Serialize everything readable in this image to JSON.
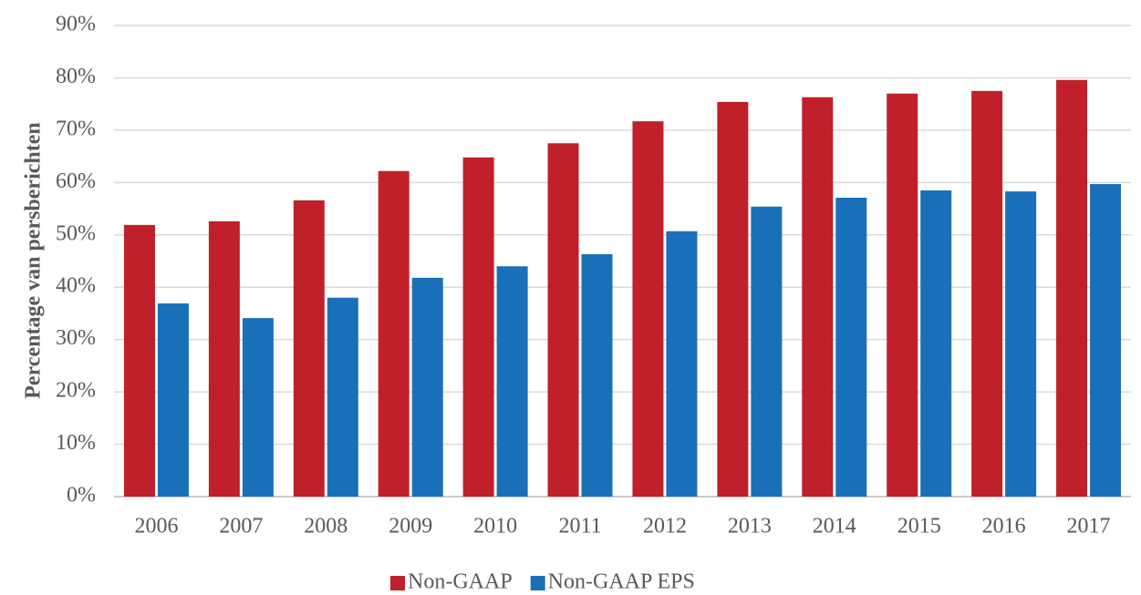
{
  "chart_data": {
    "type": "bar",
    "y_label": "Percentage van persberichten",
    "categories": [
      "2006",
      "2007",
      "2008",
      "2009",
      "2010",
      "2011",
      "2012",
      "2013",
      "2014",
      "2015",
      "2016",
      "2017"
    ],
    "series": [
      {
        "name": "Non-GAAP",
        "color": "#c0202a",
        "values": [
          51.9,
          52.6,
          56.6,
          62.2,
          64.8,
          67.5,
          71.7,
          75.4,
          76.3,
          77.0,
          77.5,
          79.6
        ]
      },
      {
        "name": "Non-GAAP EPS",
        "color": "#1a70b8",
        "values": [
          36.9,
          34.1,
          38.0,
          41.8,
          44.0,
          46.3,
          50.7,
          55.4,
          57.1,
          58.5,
          58.3,
          59.7
        ]
      }
    ],
    "ylim": [
      0,
      90
    ],
    "yticks": [
      {
        "value": 0,
        "label": "0%"
      },
      {
        "value": 10,
        "label": "10%"
      },
      {
        "value": 20,
        "label": "20%"
      },
      {
        "value": 30,
        "label": "30%"
      },
      {
        "value": 40,
        "label": "40%"
      },
      {
        "value": 50,
        "label": "50%"
      },
      {
        "value": 60,
        "label": "60%"
      },
      {
        "value": 70,
        "label": "70%"
      },
      {
        "value": 80,
        "label": "80%"
      },
      {
        "value": 90,
        "label": "90%"
      }
    ],
    "grid": true,
    "legend": "bottom"
  }
}
